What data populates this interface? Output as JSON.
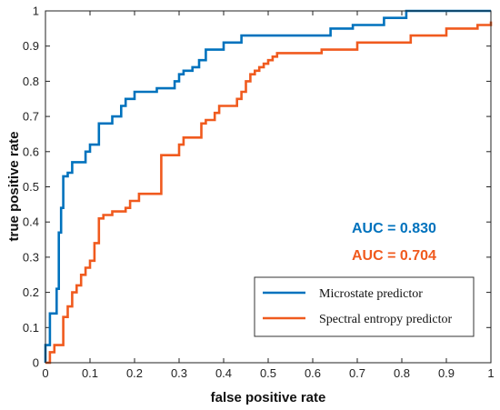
{
  "chart_data": {
    "type": "line",
    "xlabel": "false positive rate",
    "ylabel": "true positive rate",
    "xlim": [
      0,
      1
    ],
    "ylim": [
      0,
      1
    ],
    "x_ticks": [
      "0",
      "0.1",
      "0.2",
      "0.3",
      "0.4",
      "0.5",
      "0.6",
      "0.7",
      "0.8",
      "0.9",
      "1"
    ],
    "y_ticks": [
      "0",
      "0.1",
      "0.2",
      "0.3",
      "0.4",
      "0.5",
      "0.6",
      "0.7",
      "0.8",
      "0.9",
      "1"
    ],
    "grid": false,
    "legend_position": "bottom-right",
    "annotations": [
      {
        "text": "AUC = 0.830",
        "color": "#0072BD"
      },
      {
        "text": "AUC = 0.704",
        "color": "#F05A1E"
      }
    ],
    "series": [
      {
        "name": "Microstate predictor",
        "color": "#0072BD",
        "x": [
          0,
          0,
          0.01,
          0.01,
          0.025,
          0.025,
          0.03,
          0.03,
          0.035,
          0.035,
          0.04,
          0.04,
          0.05,
          0.05,
          0.06,
          0.06,
          0.07,
          0.07,
          0.09,
          0.09,
          0.1,
          0.1,
          0.11,
          0.11,
          0.12,
          0.12,
          0.15,
          0.15,
          0.17,
          0.17,
          0.18,
          0.18,
          0.2,
          0.2,
          0.25,
          0.25,
          0.26,
          0.26,
          0.29,
          0.29,
          0.3,
          0.3,
          0.31,
          0.31,
          0.33,
          0.33,
          0.345,
          0.345,
          0.36,
          0.36,
          0.37,
          0.37,
          0.4,
          0.4,
          0.44,
          0.44,
          0.64,
          0.64,
          0.69,
          0.69,
          0.76,
          0.76,
          0.81,
          0.81,
          1.0
        ],
        "y": [
          0,
          0.05,
          0.05,
          0.14,
          0.14,
          0.21,
          0.21,
          0.37,
          0.37,
          0.44,
          0.44,
          0.53,
          0.53,
          0.54,
          0.54,
          0.57,
          0.57,
          0.57,
          0.57,
          0.6,
          0.6,
          0.62,
          0.62,
          0.62,
          0.62,
          0.68,
          0.68,
          0.7,
          0.7,
          0.73,
          0.73,
          0.75,
          0.75,
          0.77,
          0.77,
          0.78,
          0.78,
          0.78,
          0.78,
          0.8,
          0.8,
          0.82,
          0.82,
          0.83,
          0.83,
          0.84,
          0.84,
          0.86,
          0.86,
          0.89,
          0.89,
          0.89,
          0.89,
          0.91,
          0.91,
          0.93,
          0.93,
          0.95,
          0.95,
          0.96,
          0.96,
          0.98,
          0.98,
          1.0,
          1.0
        ]
      },
      {
        "name": "Spectral entropy predictor",
        "color": "#F05A1E",
        "x": [
          0,
          0.01,
          0.01,
          0.02,
          0.02,
          0.04,
          0.04,
          0.05,
          0.05,
          0.06,
          0.06,
          0.07,
          0.07,
          0.08,
          0.08,
          0.09,
          0.09,
          0.1,
          0.1,
          0.11,
          0.11,
          0.12,
          0.12,
          0.13,
          0.13,
          0.15,
          0.15,
          0.18,
          0.18,
          0.19,
          0.19,
          0.21,
          0.21,
          0.26,
          0.26,
          0.3,
          0.3,
          0.31,
          0.31,
          0.35,
          0.35,
          0.36,
          0.36,
          0.38,
          0.38,
          0.39,
          0.39,
          0.4,
          0.4,
          0.43,
          0.43,
          0.44,
          0.44,
          0.45,
          0.45,
          0.46,
          0.46,
          0.47,
          0.47,
          0.48,
          0.48,
          0.49,
          0.49,
          0.5,
          0.5,
          0.51,
          0.51,
          0.52,
          0.52,
          0.62,
          0.62,
          0.7,
          0.7,
          0.82,
          0.82,
          0.9,
          0.9,
          0.97,
          0.97,
          1.0,
          1.0
        ],
        "y": [
          0,
          0,
          0.03,
          0.03,
          0.05,
          0.05,
          0.13,
          0.13,
          0.16,
          0.16,
          0.2,
          0.2,
          0.22,
          0.22,
          0.25,
          0.25,
          0.27,
          0.27,
          0.29,
          0.29,
          0.34,
          0.34,
          0.41,
          0.41,
          0.42,
          0.42,
          0.43,
          0.43,
          0.44,
          0.44,
          0.46,
          0.46,
          0.48,
          0.48,
          0.59,
          0.59,
          0.62,
          0.62,
          0.64,
          0.64,
          0.68,
          0.68,
          0.69,
          0.69,
          0.71,
          0.71,
          0.73,
          0.73,
          0.73,
          0.73,
          0.75,
          0.75,
          0.77,
          0.77,
          0.8,
          0.8,
          0.82,
          0.82,
          0.83,
          0.83,
          0.84,
          0.84,
          0.85,
          0.85,
          0.86,
          0.86,
          0.87,
          0.87,
          0.88,
          0.88,
          0.89,
          0.89,
          0.91,
          0.91,
          0.93,
          0.93,
          0.95,
          0.95,
          0.96,
          0.96,
          0.97
        ]
      }
    ]
  }
}
